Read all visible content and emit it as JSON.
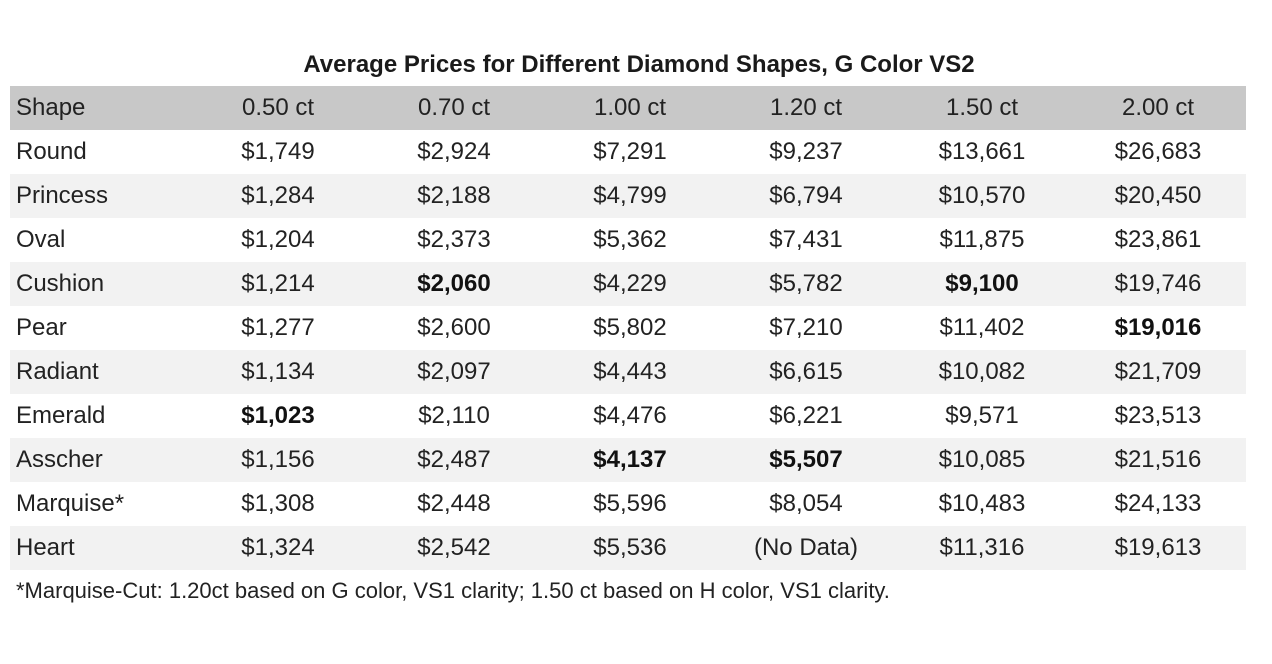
{
  "title": "Average Prices for Different Diamond Shapes, G Color VS2",
  "headers": [
    "Shape",
    "0.50 ct",
    "0.70 ct",
    "1.00 ct",
    "1.20 ct",
    "1.50 ct",
    "2.00 ct"
  ],
  "rows": [
    {
      "shape": "Round",
      "values": [
        "$1,749",
        "$2,924",
        "$7,291",
        "$9,237",
        "$13,661",
        "$26,683"
      ],
      "bold": []
    },
    {
      "shape": "Princess",
      "values": [
        "$1,284",
        "$2,188",
        "$4,799",
        "$6,794",
        "$10,570",
        "$20,450"
      ],
      "bold": []
    },
    {
      "shape": "Oval",
      "values": [
        "$1,204",
        "$2,373",
        "$5,362",
        "$7,431",
        "$11,875",
        "$23,861"
      ],
      "bold": []
    },
    {
      "shape": "Cushion",
      "values": [
        "$1,214",
        "$2,060",
        "$4,229",
        "$5,782",
        "$9,100",
        "$19,746"
      ],
      "bold": [
        1,
        4
      ]
    },
    {
      "shape": "Pear",
      "values": [
        "$1,277",
        "$2,600",
        "$5,802",
        "$7,210",
        "$11,402",
        "$19,016"
      ],
      "bold": [
        5
      ]
    },
    {
      "shape": "Radiant",
      "values": [
        "$1,134",
        "$2,097",
        "$4,443",
        "$6,615",
        "$10,082",
        "$21,709"
      ],
      "bold": []
    },
    {
      "shape": "Emerald",
      "values": [
        "$1,023",
        "$2,110",
        "$4,476",
        "$6,221",
        "$9,571",
        "$23,513"
      ],
      "bold": [
        0
      ]
    },
    {
      "shape": "Asscher",
      "values": [
        "$1,156",
        "$2,487",
        "$4,137",
        "$5,507",
        "$10,085",
        "$21,516"
      ],
      "bold": [
        2,
        3
      ]
    },
    {
      "shape": "Marquise*",
      "values": [
        "$1,308",
        "$2,448",
        "$5,596",
        "$8,054",
        "$10,483",
        "$24,133"
      ],
      "bold": []
    },
    {
      "shape": "Heart",
      "values": [
        "$1,324",
        "$2,542",
        "$5,536",
        "(No Data)",
        "$11,316",
        "$19,613"
      ],
      "bold": []
    }
  ],
  "footnote": "*Marquise-Cut: 1.20ct based on G color, VS1 clarity; 1.50 ct based on H color, VS1 clarity.",
  "colors": {
    "header_bg": "#c8c8c8",
    "stripe_bg": "#f2f2f2"
  }
}
